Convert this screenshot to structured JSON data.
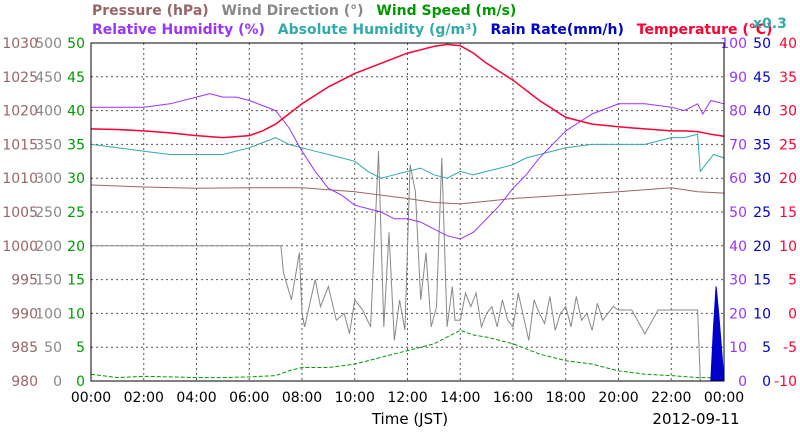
{
  "chart_data": {
    "type": "line",
    "date_label": "2012-09-11",
    "x_axis": {
      "label": "Time (JST)",
      "ticks": [
        "00:00",
        "02:00",
        "04:00",
        "06:00",
        "08:00",
        "10:00",
        "12:00",
        "14:00",
        "16:00",
        "18:00",
        "20:00",
        "22:00",
        "00:00"
      ],
      "range_hours": [
        0,
        24
      ]
    },
    "legend": {
      "row1": [
        {
          "text": "Pressure (hPa)",
          "color": "#996666"
        },
        {
          "text": "Wind Direction (°)",
          "color": "#888888"
        },
        {
          "text": "Wind Speed (m/s)",
          "color": "#009900"
        }
      ],
      "row2": [
        {
          "text": "Relative Humidity (%)",
          "color": "#9933ff"
        },
        {
          "text": "Absolute Humidity (g/m³)",
          "color": "#33aaaa"
        },
        {
          "text": "Rain Rate(mm/h)",
          "color": "#0000cc"
        },
        {
          "text": "Temperature (°C)",
          "color": "#ff0033"
        }
      ],
      "abs_humidity_scale_note": "x0.3"
    },
    "grid": true,
    "left_axes": [
      {
        "name": "Pressure (hPa)",
        "color": "#996666",
        "ticks": [
          "1030",
          "1025",
          "1020",
          "1015",
          "1010",
          "1005",
          "1000",
          "995",
          "990",
          "985",
          "980"
        ]
      },
      {
        "name": "Wind Direction (°)",
        "color": "#888888",
        "ticks": [
          "500",
          "450",
          "400",
          "350",
          "300",
          "250",
          "200",
          "150",
          "100",
          "50",
          "0"
        ]
      },
      {
        "name": "Wind Speed (m/s)",
        "color": "#009900",
        "ticks": [
          "50",
          "45",
          "40",
          "35",
          "30",
          "25",
          "20",
          "15",
          "10",
          "5",
          "0"
        ]
      }
    ],
    "right_axes": [
      {
        "name": "Relative Humidity (%)",
        "color": "#9933ff",
        "ticks": [
          "100",
          "90",
          "80",
          "70",
          "60",
          "50",
          "40",
          "30",
          "20",
          "10",
          "0"
        ]
      },
      {
        "name": "Rain Rate (mm/h)",
        "color": "#0000cc",
        "ticks": [
          "50",
          "45",
          "40",
          "35",
          "30",
          "25",
          "20",
          "15",
          "10",
          "5",
          "0"
        ]
      },
      {
        "name": "Temperature (°C)",
        "color": "#ff0033",
        "ticks": [
          "40",
          "35",
          "30",
          "25",
          "20",
          "15",
          "10",
          "5",
          "0",
          "-5",
          "-10"
        ]
      }
    ],
    "series": [
      {
        "name": "Temperature",
        "axis": "Temperature (°C)",
        "color": "#ff0033",
        "ylim": [
          -10,
          40
        ],
        "x_hours": [
          0,
          1,
          2,
          3,
          4,
          5,
          6,
          6.5,
          7,
          7.5,
          8,
          9,
          10,
          11,
          12,
          12.5,
          13,
          13.5,
          14,
          14.5,
          15,
          16,
          17,
          18,
          19,
          20,
          21,
          22,
          22.5,
          23,
          23.5,
          24
        ],
        "values": [
          27.3,
          27.2,
          27,
          26.7,
          26.3,
          26,
          26.3,
          27,
          28,
          29.5,
          31,
          33.5,
          35.5,
          37,
          38.5,
          39,
          39.5,
          39.8,
          39.6,
          38.5,
          37,
          34.5,
          31.5,
          29,
          28,
          27.6,
          27.3,
          27,
          27,
          26.9,
          26.5,
          26.2
        ]
      },
      {
        "name": "Relative Humidity",
        "axis": "Relative Humidity (%)",
        "color": "#9933ff",
        "ylim": [
          0,
          100
        ],
        "x_hours": [
          0,
          1,
          2,
          3,
          4,
          4.5,
          5,
          5.5,
          6,
          7,
          7.5,
          8,
          8.5,
          9,
          9.5,
          10,
          10.5,
          11,
          11.5,
          12,
          12.5,
          13,
          13.5,
          14,
          14.5,
          15,
          15.5,
          16,
          16.5,
          17,
          18,
          19,
          20,
          21,
          22,
          22.5,
          23,
          23.2,
          23.5,
          24
        ],
        "values": [
          81,
          81,
          81,
          82,
          84,
          85,
          84,
          84,
          83,
          80,
          75,
          68,
          62,
          57,
          55,
          52,
          51,
          50,
          48,
          48,
          47,
          45,
          43,
          42,
          44,
          48,
          52,
          57,
          61,
          66,
          74,
          79,
          82,
          82,
          81,
          80,
          82,
          79,
          83,
          82
        ]
      },
      {
        "name": "Absolute Humidity",
        "axis": "Relative Humidity (%) (x0.3)",
        "color": "#33aaaa",
        "ylim": [
          0,
          100
        ],
        "x_hours": [
          0,
          1,
          2,
          3,
          4,
          5,
          6,
          7,
          7.5,
          8,
          8.5,
          9,
          9.5,
          10,
          10.5,
          11,
          11.5,
          12,
          12.5,
          13,
          13.5,
          14,
          14.5,
          15,
          15.5,
          16,
          16.5,
          17,
          18,
          19,
          20,
          21,
          22,
          22.5,
          23,
          23.1,
          23.3,
          23.6,
          24
        ],
        "values": [
          70,
          69,
          68,
          67,
          67,
          67,
          69,
          72,
          70,
          69,
          68,
          67,
          66,
          65,
          62,
          60,
          61,
          62,
          63,
          61,
          60,
          62,
          61,
          62,
          63,
          64,
          66,
          67,
          69,
          70,
          70,
          70,
          72,
          72,
          73,
          62,
          64,
          67,
          66
        ]
      },
      {
        "name": "Pressure",
        "axis": "Pressure (hPa)",
        "color": "#996666",
        "ylim": [
          980,
          1030
        ],
        "x_hours": [
          0,
          2,
          4,
          6,
          8,
          10,
          12,
          13,
          14,
          15,
          16,
          18,
          20,
          22,
          23,
          24
        ],
        "values": [
          1009,
          1008.7,
          1008.5,
          1008.6,
          1008.6,
          1008,
          1007,
          1006.4,
          1006.2,
          1006.6,
          1007,
          1007.5,
          1008,
          1008.6,
          1008,
          1007.8
        ]
      },
      {
        "name": "Wind Direction",
        "axis": "Wind Direction (°)",
        "color": "#888888",
        "ylim": [
          0,
          500
        ],
        "x_hours": [
          0,
          7.2,
          7.3,
          7.6,
          7.9,
          8.0,
          8.1,
          8.5,
          8.7,
          9.0,
          9.3,
          9.6,
          9.8,
          10.0,
          10.3,
          10.6,
          10.9,
          11.1,
          11.3,
          11.5,
          11.7,
          11.9,
          12.1,
          12.3,
          12.5,
          12.7,
          12.9,
          13.1,
          13.3,
          13.5,
          13.7,
          13.8,
          14.0,
          14.2,
          14.4,
          14.6,
          14.8,
          15.0,
          15.2,
          15.4,
          15.6,
          15.8,
          16.0,
          16.2,
          16.4,
          16.6,
          16.8,
          17.0,
          17.2,
          17.4,
          17.6,
          17.8,
          18.0,
          18.2,
          18.4,
          18.6,
          18.8,
          19.0,
          19.2,
          19.4,
          19.6,
          19.8,
          20.0,
          20.5,
          21.0,
          21.5,
          22.0,
          22.5,
          23.0,
          23.1,
          23.3,
          23.6,
          24
        ],
        "values": [
          200,
          200,
          160,
          120,
          190,
          100,
          80,
          150,
          110,
          140,
          90,
          100,
          70,
          120,
          105,
          80,
          340,
          80,
          220,
          60,
          120,
          75,
          320,
          280,
          120,
          190,
          80,
          110,
          330,
          80,
          140,
          90,
          90,
          130,
          110,
          130,
          80,
          100,
          110,
          80,
          120,
          90,
          80,
          130,
          95,
          60,
          120,
          100,
          85,
          125,
          75,
          100,
          110,
          80,
          125,
          90,
          100,
          75,
          115,
          90,
          100,
          110,
          105,
          105,
          70,
          105,
          105,
          105,
          105,
          0,
          0,
          0,
          0
        ]
      },
      {
        "name": "Wind Speed",
        "axis": "Wind Speed (m/s)",
        "color": "#009900",
        "ylim": [
          0,
          50
        ],
        "x_hours": [
          0,
          1,
          2,
          3,
          4,
          5,
          6,
          7,
          7.5,
          8,
          9,
          10,
          11,
          12,
          13,
          13.5,
          14,
          14.5,
          15,
          15.5,
          16,
          17,
          18,
          19,
          20,
          21,
          22,
          23,
          24
        ],
        "values": [
          1,
          0.5,
          0.7,
          0.6,
          0.5,
          0.5,
          0.6,
          0.8,
          1.5,
          2,
          2,
          2.5,
          3.5,
          4.5,
          5.5,
          6.5,
          7.5,
          6.8,
          6.5,
          6,
          5.5,
          4,
          3,
          2.5,
          1.5,
          1,
          0.8,
          0.5,
          0.5
        ]
      },
      {
        "name": "Rain Rate",
        "axis": "Rain Rate (mm/h)",
        "color": "#0000cc",
        "ylim": [
          0,
          50
        ],
        "x_hours": [
          0,
          23.5,
          23.6,
          23.7,
          23.8,
          23.9,
          24
        ],
        "values": [
          0,
          0,
          8,
          14,
          10,
          5,
          0
        ]
      }
    ]
  }
}
